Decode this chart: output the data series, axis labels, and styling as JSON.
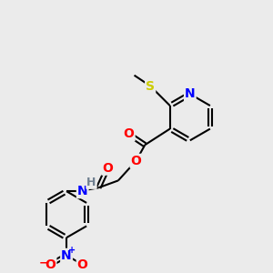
{
  "bg_color": "#ebebeb",
  "bond_color": "#000000",
  "atom_colors": {
    "N": "#0000ff",
    "O": "#ff0000",
    "S": "#cccc00",
    "H": "#708090",
    "C": "#000000"
  },
  "figsize": [
    3.0,
    3.0
  ],
  "dpi": 100
}
